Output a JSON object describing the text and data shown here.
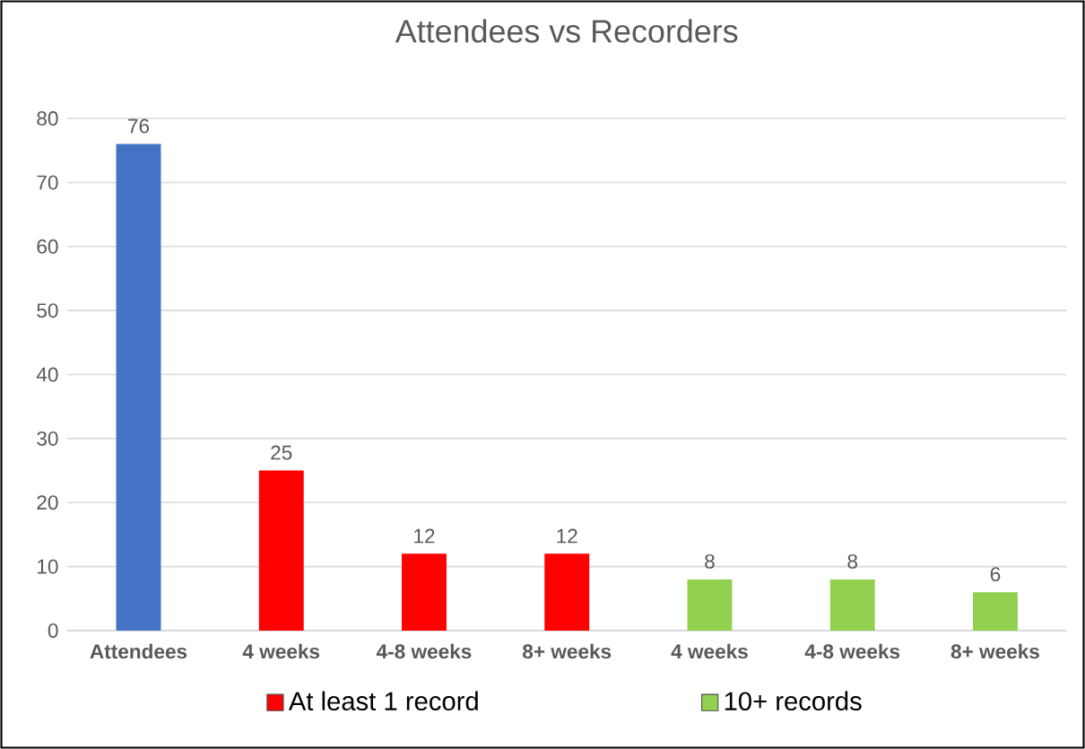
{
  "chart_data": {
    "type": "bar",
    "title": "Attendees vs Recorders",
    "categories": [
      "Attendees",
      "4 weeks",
      "4-8 weeks",
      "8+ weeks",
      "4 weeks",
      "4-8 weeks",
      "8+ weeks"
    ],
    "series": [
      {
        "color": "#4472c4",
        "values": [
          76,
          null,
          null,
          null,
          null,
          null,
          null
        ]
      },
      {
        "name": "At least 1 record",
        "color": "#ff0000",
        "values": [
          null,
          25,
          12,
          12,
          null,
          null,
          null
        ]
      },
      {
        "name": "10+ records",
        "color": "#92d050",
        "values": [
          null,
          null,
          null,
          null,
          8,
          8,
          6
        ]
      }
    ],
    "ylim": [
      0,
      80
    ],
    "yticks": [
      0,
      10,
      20,
      30,
      40,
      50,
      60,
      70,
      80
    ],
    "grid": "y",
    "legend": "bottom",
    "data_labels": true
  }
}
